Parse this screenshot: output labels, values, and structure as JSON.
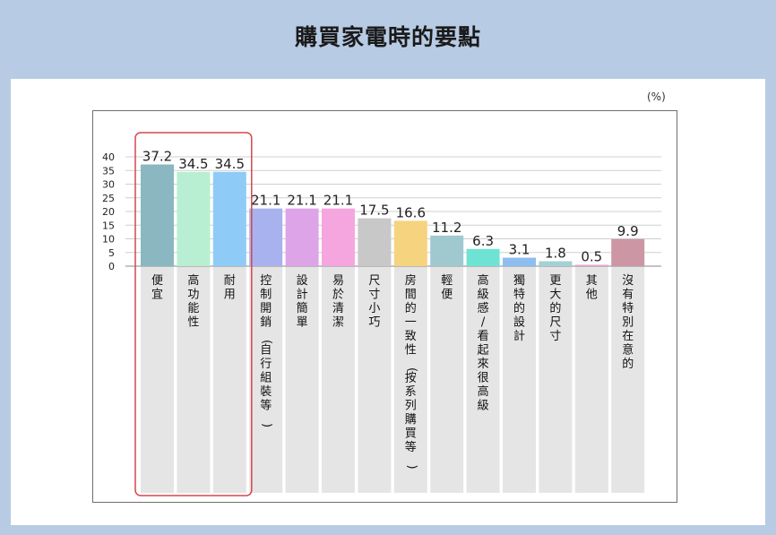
{
  "page": {
    "title": "購買家電時的要點",
    "unit": "(%)"
  },
  "chart_data": {
    "type": "bar",
    "title": "購買家電時的要點",
    "unit": "(%)",
    "ylim": [
      0,
      40
    ],
    "yticks": [
      0,
      5,
      10,
      15,
      20,
      25,
      30,
      35,
      40
    ],
    "grid": true,
    "categories": [
      "便宜",
      "高功能性",
      "耐用",
      "控制開銷（自行組裝等）",
      "設計簡單",
      "易於清潔",
      "尺寸小巧",
      "房間的一致性（按系列購買等）",
      "輕便",
      "高級感/看起來很高級",
      "獨特的設計",
      "更大的尺寸",
      "其他",
      "沒有特別在意的"
    ],
    "values": [
      37.2,
      34.5,
      34.5,
      21.1,
      21.1,
      21.1,
      17.5,
      16.6,
      11.2,
      6.3,
      3.1,
      1.8,
      0.5,
      9.9
    ],
    "value_labels": [
      "37.2",
      "34.5",
      "34.5",
      "21.1",
      "21.1",
      "21.1",
      "17.5",
      "16.6",
      "11.2",
      "6.3",
      "3.1",
      "1.8",
      "0.5",
      "9.9"
    ],
    "colors": [
      "#8ab7c0",
      "#b8efd2",
      "#8fcbf7",
      "#a8b2ee",
      "#dea4e8",
      "#f6a6de",
      "#c8c8c8",
      "#f6d37f",
      "#9fc9cf",
      "#6ee3d3",
      "#8ebdf0",
      "#a3d1d4",
      "#e3a6cc",
      "#cc96a4"
    ],
    "highlight_categories": [
      "便宜",
      "高功能性",
      "耐用"
    ],
    "highlight_color": "#d2484f"
  }
}
